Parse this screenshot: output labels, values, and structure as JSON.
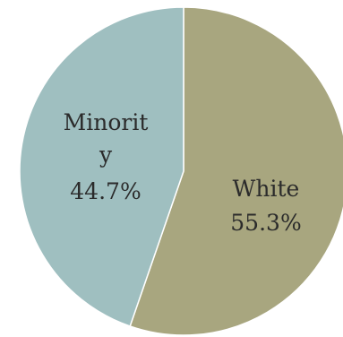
{
  "chart_data": {
    "type": "pie",
    "title": "",
    "categories": [
      "White",
      "Minority"
    ],
    "values": [
      55.3,
      44.7
    ],
    "value_labels": [
      "55.3%",
      "44.7%"
    ],
    "start": "12 o'clock",
    "direction": "clockwise",
    "legend": "none"
  },
  "labels": {
    "white_name": "White",
    "white_value": "55.3%",
    "minority_name_line1": "Minorit",
    "minority_name_line2": "y",
    "minority_value": "44.7%"
  },
  "colors": {
    "white": "#a8a67f",
    "minority": "#9fbfc0",
    "edge": "#ffffff"
  }
}
